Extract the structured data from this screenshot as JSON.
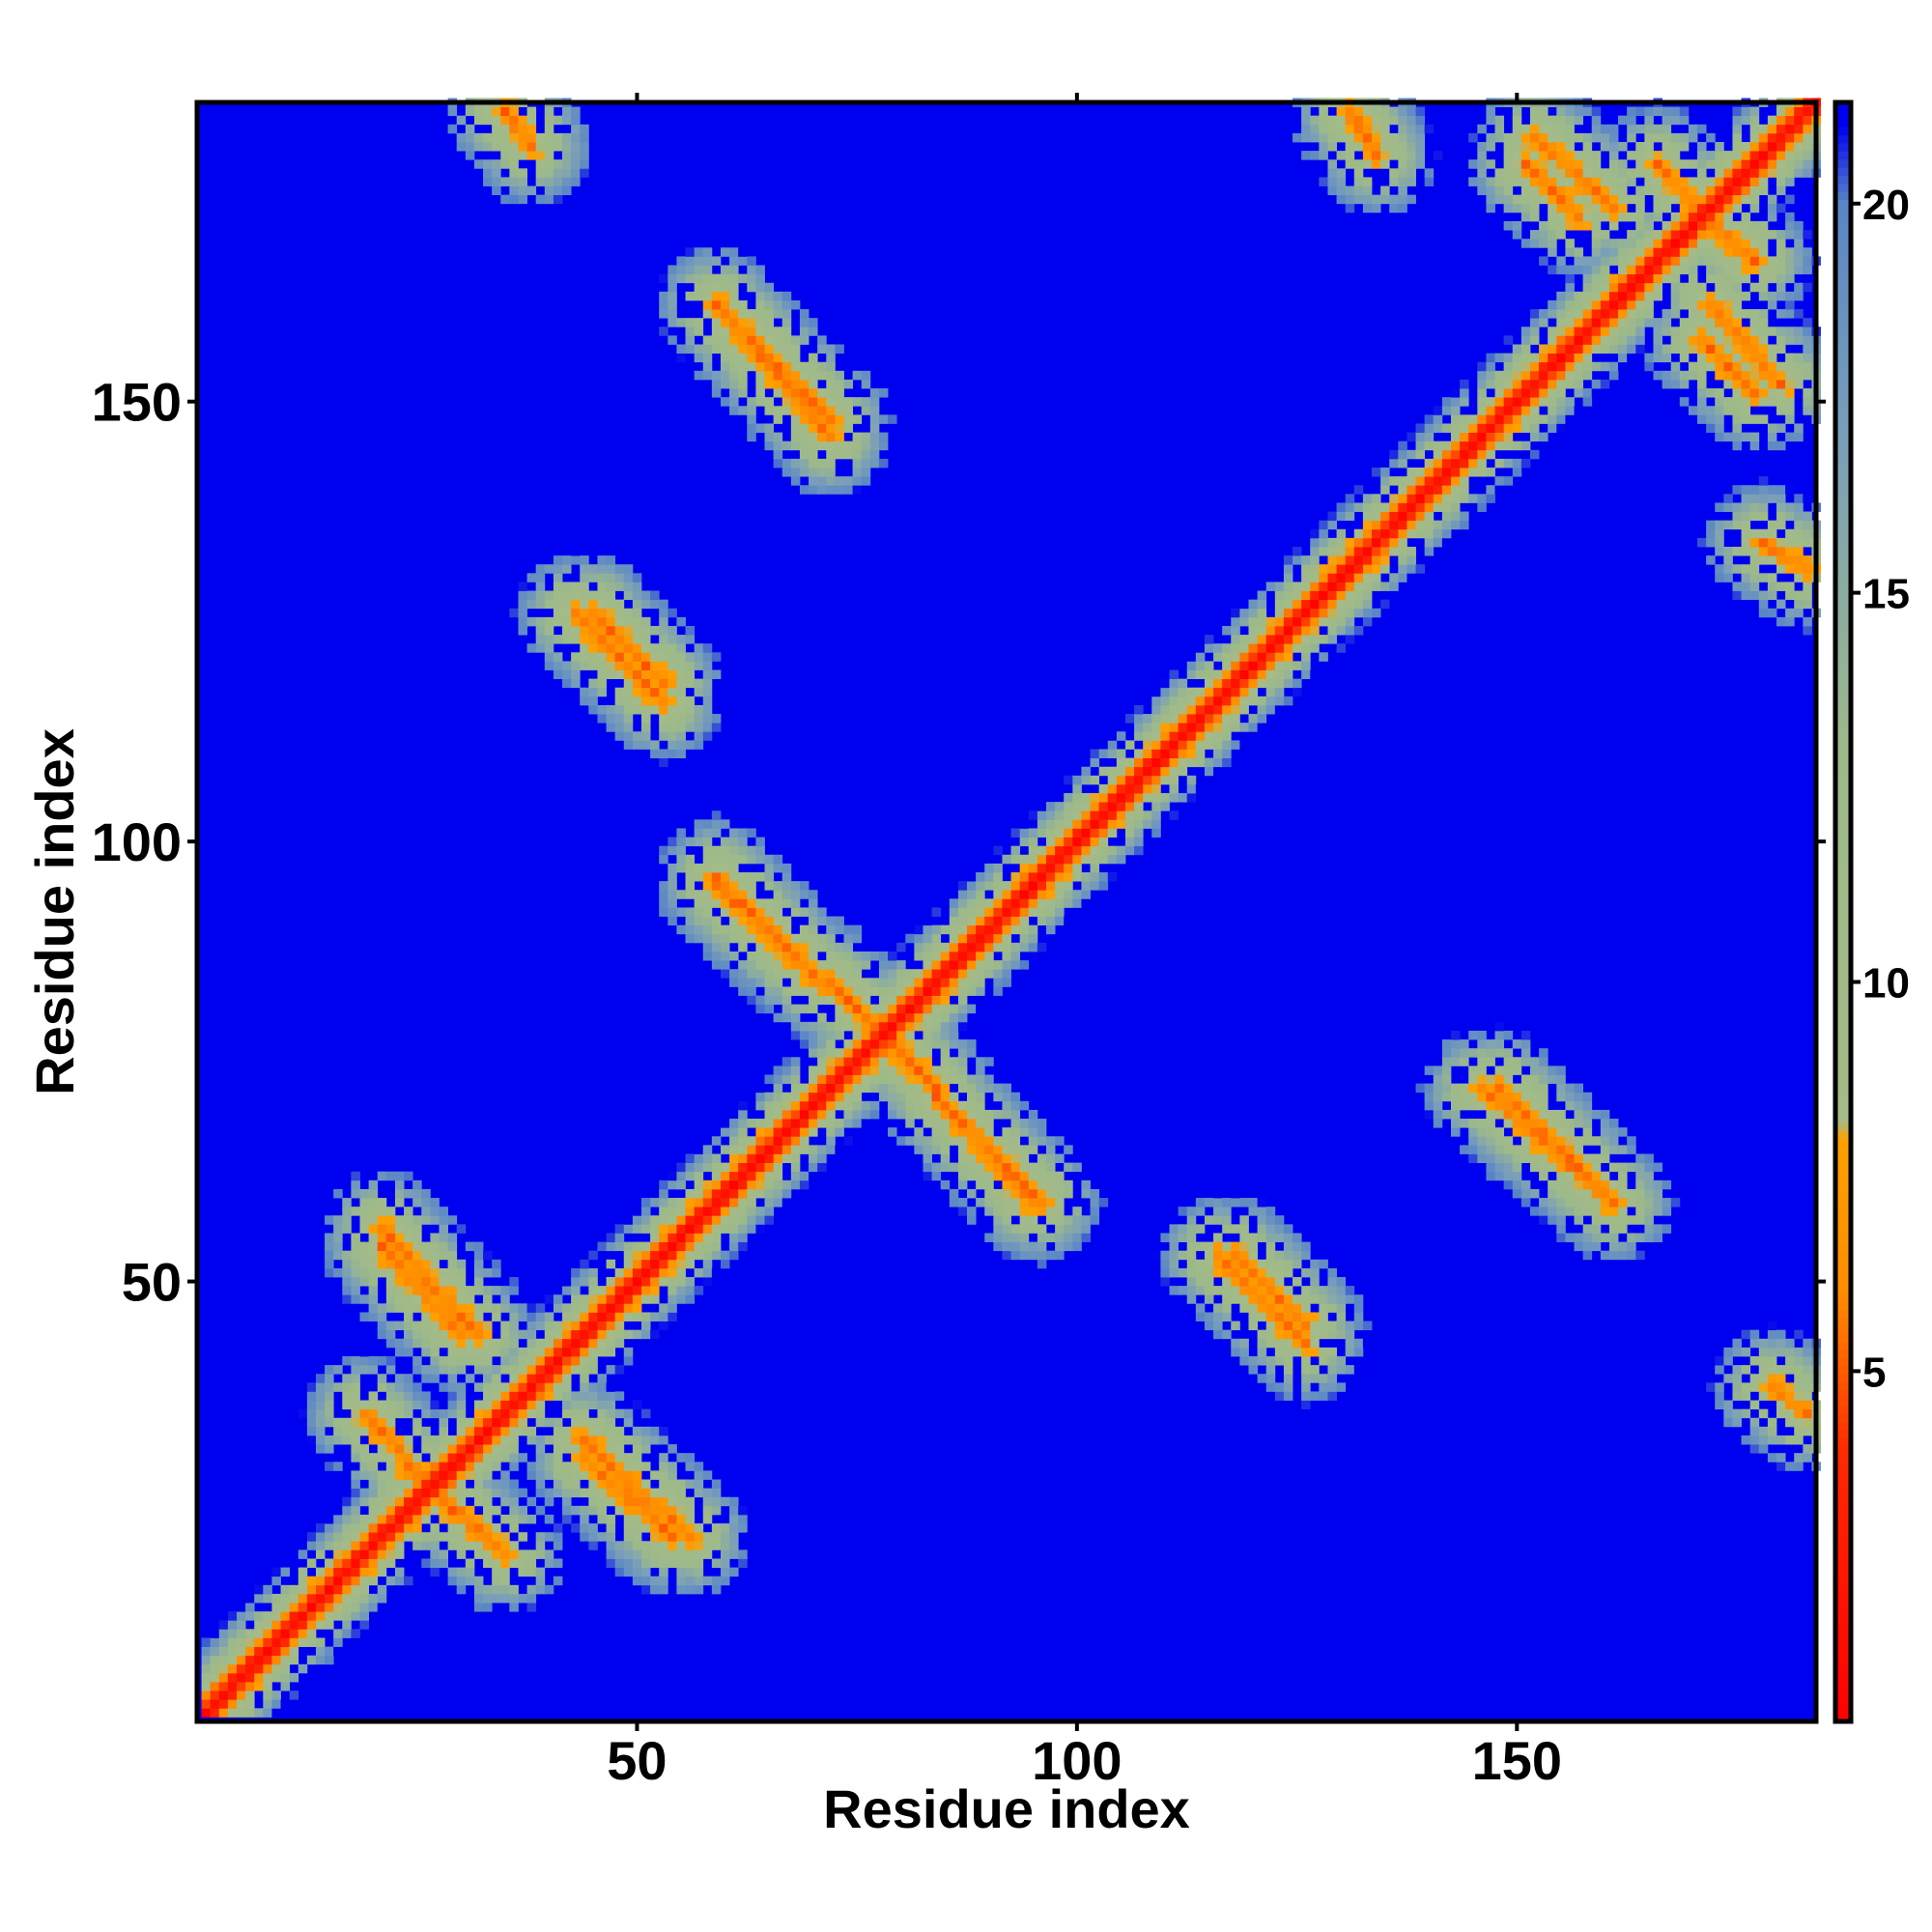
{
  "chart_data": {
    "type": "heatmap",
    "title": "",
    "xlabel": "Residue index",
    "ylabel": "Residue index",
    "x_range": [
      1,
      184
    ],
    "y_range": [
      1,
      184
    ],
    "x_ticks": [
      50,
      100,
      150
    ],
    "y_ticks": [
      50,
      100,
      150
    ],
    "colorbar": {
      "ticks": [
        5,
        10,
        15,
        20
      ],
      "range": [
        0.5,
        21.3
      ],
      "colors": {
        "red": "#ff0000",
        "orange": "#ff9900",
        "sage": "#9db98a",
        "steel": "#6a8fc0",
        "blue": "#0000f0"
      },
      "stops": [
        {
          "value": 0.5,
          "color": "#ff0000"
        },
        {
          "value": 4.0,
          "color": "#ff2a00"
        },
        {
          "value": 6.0,
          "color": "#ff8c00"
        },
        {
          "value": 8.0,
          "color": "#ffa000"
        },
        {
          "value": 8.2,
          "color": "#a5bb88"
        },
        {
          "value": 13.0,
          "color": "#9db98a"
        },
        {
          "value": 17.0,
          "color": "#7a9fb8"
        },
        {
          "value": 20.0,
          "color": "#5a86c6"
        },
        {
          "value": 21.0,
          "color": "#0000f0"
        }
      ]
    },
    "features": [
      {
        "kind": "diagonal",
        "from": 1,
        "to": 184
      },
      {
        "kind": "strand-pair",
        "x": [
          19,
          29
        ],
        "y": [
          35,
          24
        ]
      },
      {
        "kind": "strand-pair",
        "x": [
          21,
          30
        ],
        "y": [
          54,
          44
        ]
      },
      {
        "kind": "strand-pair",
        "x": [
          44,
          56
        ],
        "y": [
          32,
          21
        ]
      },
      {
        "kind": "strand-pair",
        "x": [
          43,
          53
        ],
        "y": [
          126,
          116
        ]
      },
      {
        "kind": "strand-pair",
        "x": [
          59,
          72
        ],
        "y": [
          161,
          148
        ]
      },
      {
        "kind": "strand-pair",
        "x": [
          59,
          71
        ],
        "y": [
          96,
          84
        ]
      },
      {
        "kind": "strand-pair",
        "x": [
          72,
          81
        ],
        "y": [
          84,
          75
        ]
      },
      {
        "kind": "strand-pair",
        "x": [
          84,
          95
        ],
        "y": [
          71,
          59
        ]
      },
      {
        "kind": "strand-pair",
        "x": [
          118,
          126
        ],
        "y": [
          53,
          45
        ]
      },
      {
        "kind": "strand-pair",
        "x": [
          146,
          161
        ],
        "y": [
          72,
          59
        ]
      },
      {
        "kind": "strand-pair",
        "x": [
          151,
          157
        ],
        "y": [
          177,
          171
        ]
      },
      {
        "kind": "strand-pair",
        "x": [
          172,
          180
        ],
        "y": [
          161,
          152
        ]
      },
      {
        "kind": "strand-pair",
        "x": [
          166,
          172
        ],
        "y": [
          177,
          170
        ]
      },
      {
        "kind": "strand-pair",
        "x": [
          35,
          38
        ],
        "y": [
          183,
          179
        ]
      },
      {
        "kind": "strand-pair",
        "x": [
          131,
          134
        ],
        "y": [
          183,
          178
        ]
      }
    ]
  }
}
